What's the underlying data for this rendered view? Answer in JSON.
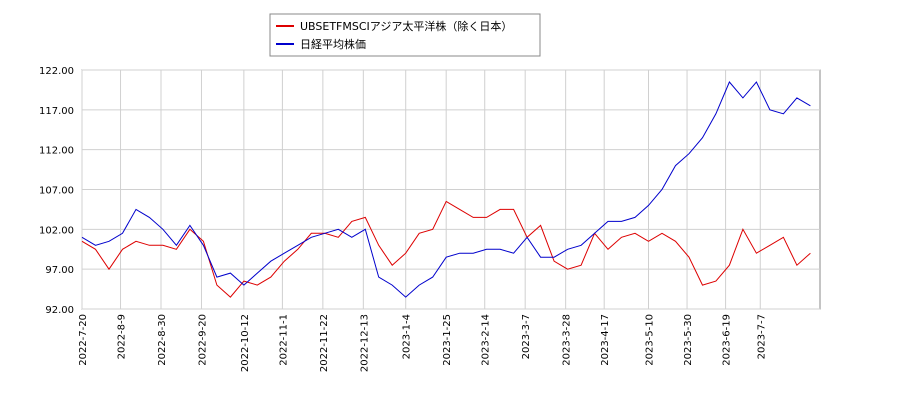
{
  "chart_data": {
    "type": "line",
    "x": [
      "2022-7-20",
      "2022-7-27",
      "2022-8-3",
      "2022-8-10",
      "2022-8-17",
      "2022-8-24",
      "2022-8-31",
      "2022-9-7",
      "2022-9-14",
      "2022-9-21",
      "2022-9-28",
      "2022-10-5",
      "2022-10-12",
      "2022-10-19",
      "2022-10-26",
      "2022-11-2",
      "2022-11-9",
      "2022-11-16",
      "2022-11-23",
      "2022-11-30",
      "2022-12-7",
      "2022-12-14",
      "2022-12-21",
      "2022-12-28",
      "2023-1-4",
      "2023-1-11",
      "2023-1-18",
      "2023-1-25",
      "2023-2-1",
      "2023-2-8",
      "2023-2-15",
      "2023-2-22",
      "2023-3-1",
      "2023-3-8",
      "2023-3-15",
      "2023-3-22",
      "2023-3-29",
      "2023-4-5",
      "2023-4-12",
      "2023-4-19",
      "2023-4-26",
      "2023-5-3",
      "2023-5-10",
      "2023-5-17",
      "2023-5-24",
      "2023-5-31",
      "2023-6-7",
      "2023-6-14",
      "2023-6-21",
      "2023-6-28",
      "2023-7-5",
      "2023-7-12",
      "2023-7-19",
      "2023-7-26",
      "2023-8-2"
    ],
    "series": [
      {
        "name": "UBSETFMSCIアジア太平洋株（除く日本）",
        "color": "#dd0000",
        "values": [
          100.5,
          99.5,
          97,
          99.5,
          100.5,
          100,
          100,
          99.5,
          102,
          100.5,
          95,
          93.5,
          95.5,
          95,
          96,
          98,
          99.5,
          101.5,
          101.5,
          101,
          103,
          103.5,
          100,
          97.5,
          99,
          101.5,
          102,
          105.5,
          104.5,
          103.5,
          103.5,
          104.5,
          104.5,
          101,
          102.5,
          98,
          97,
          97.5,
          101.5,
          99.5,
          101,
          101.5,
          100.5,
          101.5,
          100.5,
          98.5,
          95,
          95.5,
          97.5,
          102,
          99,
          100,
          101,
          97.5,
          99
        ]
      },
      {
        "name": "日経平均株価",
        "color": "#0000cc",
        "values": [
          101,
          100,
          100.5,
          101.5,
          104.5,
          103.5,
          102,
          100,
          102.5,
          100,
          96,
          96.5,
          95,
          96.5,
          98,
          99,
          100,
          101,
          101.5,
          102,
          101,
          102,
          96,
          95,
          93.5,
          95,
          96,
          98.5,
          99,
          99,
          99.5,
          99.5,
          99,
          101,
          98.5,
          98.5,
          99.5,
          100,
          101.5,
          103,
          103,
          103.5,
          105,
          107,
          110,
          111.5,
          113.5,
          116.5,
          120.5,
          118.5,
          120.5,
          117,
          116.5,
          118.5,
          117.5
        ]
      }
    ],
    "xlim": [
      "2022-7-20",
      "2023-8-7"
    ],
    "xticks": [
      "2022-7-20",
      "2022-8-9",
      "2022-8-30",
      "2022-9-20",
      "2022-10-12",
      "2022-11-1",
      "2022-11-22",
      "2022-12-13",
      "2023-1-4",
      "2023-1-25",
      "2023-2-14",
      "2023-3-7",
      "2023-3-28",
      "2023-4-17",
      "2023-5-10",
      "2023-5-30",
      "2023-6-19",
      "2023-7-7"
    ],
    "ylim": [
      92,
      122
    ],
    "yticks": [
      {
        "value": 92,
        "label": "92.00"
      },
      {
        "value": 97,
        "label": "97.00"
      },
      {
        "value": 102,
        "label": "102.00"
      },
      {
        "value": 107,
        "label": "107.00"
      },
      {
        "value": 112,
        "label": "112.00"
      },
      {
        "value": 117,
        "label": "117.00"
      },
      {
        "value": 122,
        "label": "122.00"
      }
    ],
    "grid": true
  }
}
